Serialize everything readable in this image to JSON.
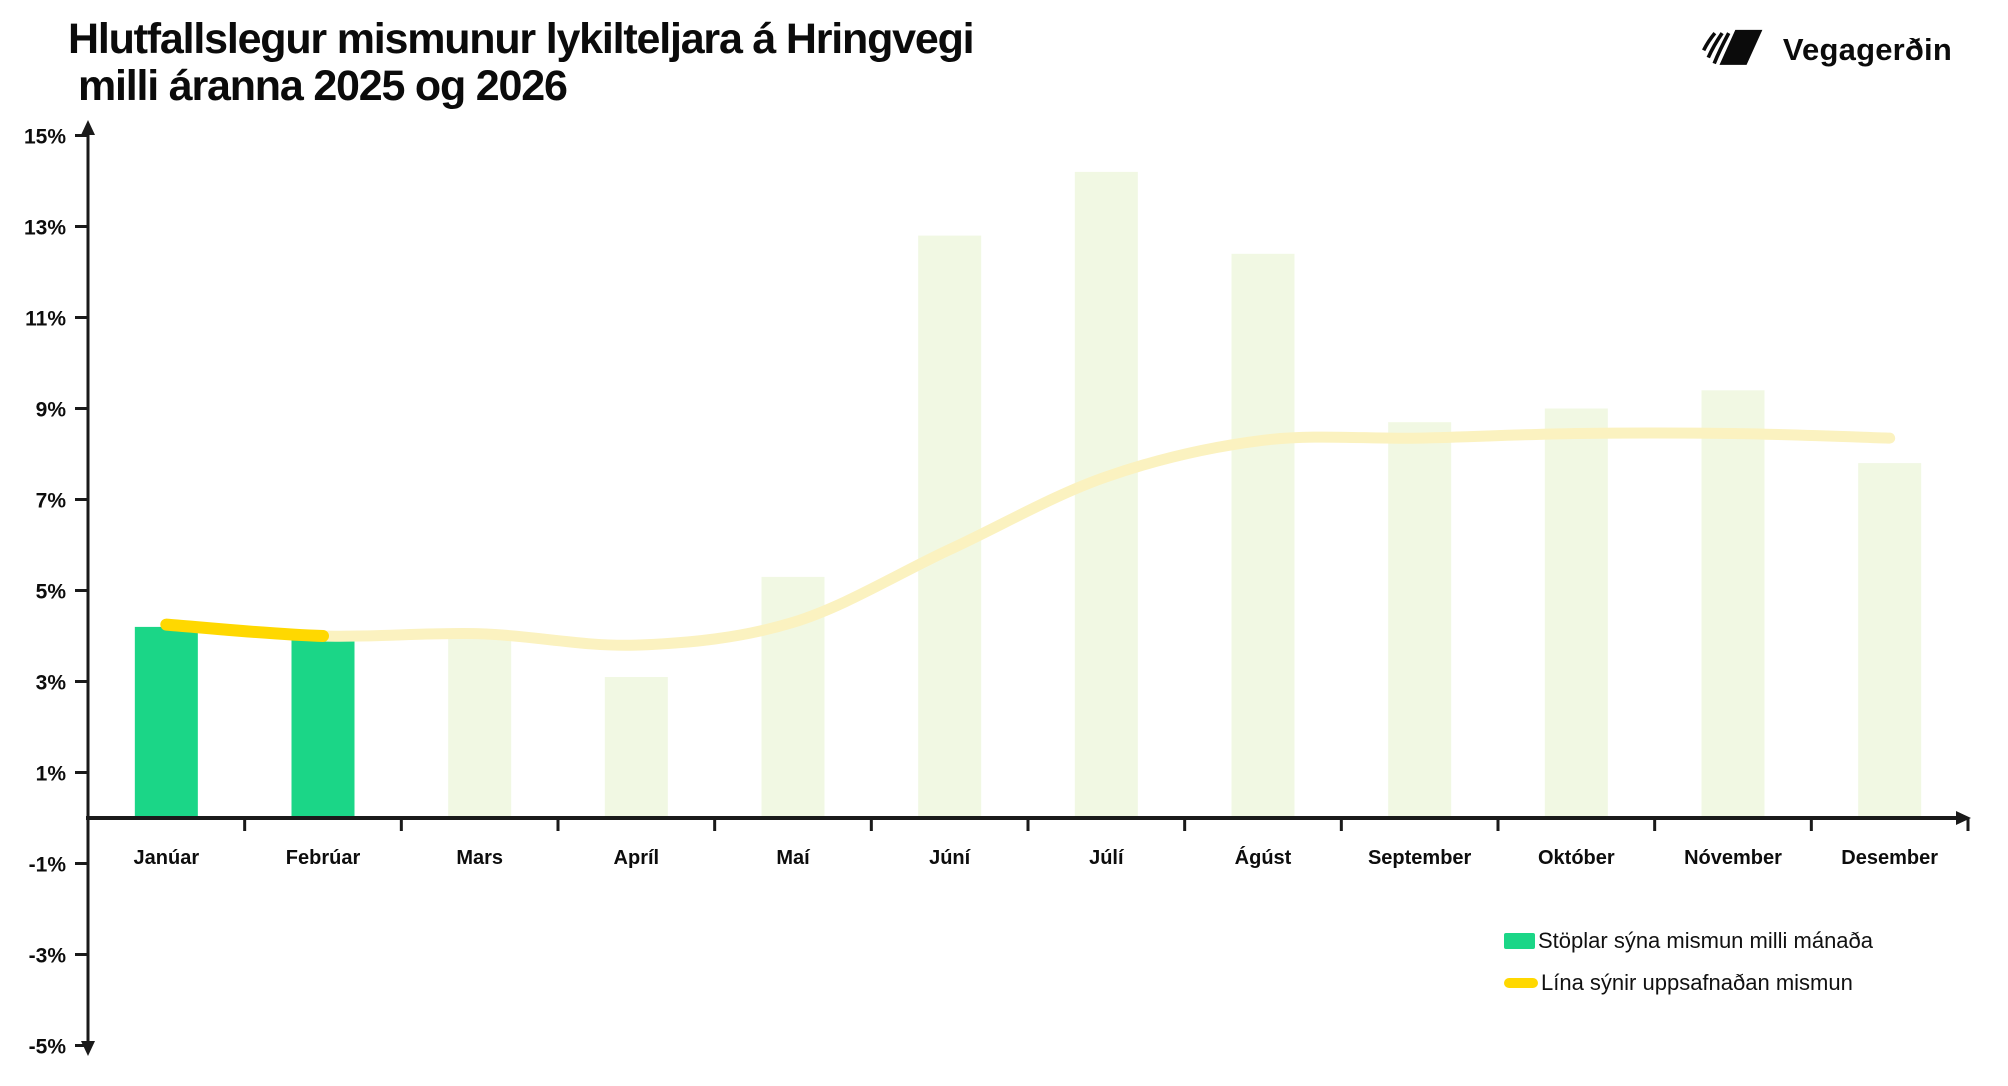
{
  "header": {
    "title_line1": "Hlutfallslegur mismunur lykilteljara á Hringvegi",
    "title_line2": "milli áranna 2025 og 2026",
    "logo_text": "Vegagerðin"
  },
  "legend": {
    "bars_label": "Stöplar sýna mismun milli mánaða",
    "line_label": "Lína sýnir uppsafnaðan mismun"
  },
  "colors": {
    "bar_actual": "#1BD687",
    "bar_projected": "#F1F8E3",
    "line_actual": "#FFD800",
    "line_projected": "#FBF2C0",
    "axis": "#1a1a1a",
    "text": "#0d0d0d"
  },
  "chart_data": {
    "type": "bar",
    "title": "Hlutfallslegur mismunur lykilteljara á Hringvegi milli áranna 2025 og 2026",
    "categories": [
      "Janúar",
      "Febrúar",
      "Mars",
      "Apríl",
      "Maí",
      "Júní",
      "Júlí",
      "Ágúst",
      "September",
      "Október",
      "Nóvember",
      "Desember"
    ],
    "series": [
      {
        "name": "Stöplar sýna mismun milli mánaða",
        "type": "bar",
        "unit": "%",
        "values": [
          4.2,
          3.9,
          4.0,
          3.1,
          5.3,
          12.8,
          14.2,
          12.4,
          8.7,
          9.0,
          9.4,
          7.8
        ],
        "actual_count": 2
      },
      {
        "name": "Lína sýnir uppsafnaðan mismun",
        "type": "line",
        "unit": "%",
        "values": [
          4.25,
          4.0,
          4.05,
          3.8,
          4.3,
          5.9,
          7.5,
          8.3,
          8.35,
          8.45,
          8.45,
          8.35
        ],
        "actual_count": 2
      }
    ],
    "xlabel": "",
    "ylabel": "",
    "ylim": [
      -5,
      15
    ],
    "y_ticks": [
      {
        "value": 15,
        "label": "15%"
      },
      {
        "value": 13,
        "label": "13%"
      },
      {
        "value": 11,
        "label": "11%"
      },
      {
        "value": 9,
        "label": "9%"
      },
      {
        "value": 7,
        "label": "7%"
      },
      {
        "value": 5,
        "label": "5%"
      },
      {
        "value": 3,
        "label": "3%"
      },
      {
        "value": 1,
        "label": "1%"
      },
      {
        "value": -1,
        "label": "-1%"
      },
      {
        "value": -3,
        "label": "-3%"
      },
      {
        "value": -5,
        "label": "-5%"
      }
    ],
    "grid": false,
    "legend_position": "bottom-right"
  }
}
